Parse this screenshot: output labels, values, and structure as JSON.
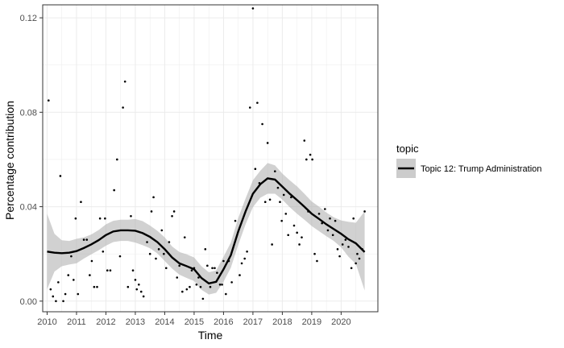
{
  "chart_data": {
    "type": "scatter",
    "title": "",
    "xlabel": "Time",
    "ylabel": "Percentage contribution",
    "xlim": [
      2009.85,
      2021.25
    ],
    "ylim": [
      -0.0045,
      0.1255
    ],
    "x_ticks": [
      2010,
      2011,
      2012,
      2013,
      2014,
      2015,
      2016,
      2017,
      2018,
      2019,
      2020
    ],
    "x_tick_labels": [
      "2010",
      "2011",
      "2012",
      "2013",
      "2014",
      "2015",
      "2016",
      "2017",
      "2018",
      "2019",
      "2020"
    ],
    "y_ticks": [
      0.0,
      0.04,
      0.08,
      0.12
    ],
    "y_tick_labels": [
      "0.00",
      "0.04",
      "0.08",
      "0.12"
    ],
    "grid": true,
    "legend": {
      "title": "topic",
      "position": "right",
      "entries": [
        "Topic 12: Trump Administration"
      ]
    },
    "colors": {
      "points": "#000000",
      "smooth_line": "#000000",
      "confidence_band": "#b3b3b3",
      "panel_border": "#333333",
      "grid": "#ebebeb",
      "legend_key_bg": "#cccccc"
    },
    "series": [
      {
        "name": "Topic 12: Trump Administration",
        "kind": "points",
        "points": [
          [
            2010.05,
            0.085
          ],
          [
            2010.12,
            0.005
          ],
          [
            2010.2,
            0.002
          ],
          [
            2010.3,
            0.0
          ],
          [
            2010.38,
            0.008
          ],
          [
            2010.45,
            0.053
          ],
          [
            2010.55,
            0.0
          ],
          [
            2010.62,
            0.003
          ],
          [
            2010.72,
            0.011
          ],
          [
            2010.82,
            0.019
          ],
          [
            2010.9,
            0.009
          ],
          [
            2010.97,
            0.035
          ],
          [
            2011.05,
            0.003
          ],
          [
            2011.15,
            0.042
          ],
          [
            2011.25,
            0.026
          ],
          [
            2011.35,
            0.026
          ],
          [
            2011.45,
            0.011
          ],
          [
            2011.52,
            0.017
          ],
          [
            2011.6,
            0.006
          ],
          [
            2011.7,
            0.006
          ],
          [
            2011.8,
            0.035
          ],
          [
            2011.9,
            0.021
          ],
          [
            2011.97,
            0.035
          ],
          [
            2012.05,
            0.013
          ],
          [
            2012.15,
            0.013
          ],
          [
            2012.28,
            0.047
          ],
          [
            2012.38,
            0.06
          ],
          [
            2012.48,
            0.019
          ],
          [
            2012.58,
            0.082
          ],
          [
            2012.65,
            0.093
          ],
          [
            2012.75,
            0.006
          ],
          [
            2012.85,
            0.036
          ],
          [
            2012.92,
            0.013
          ],
          [
            2013.0,
            0.009
          ],
          [
            2013.05,
            0.005
          ],
          [
            2013.12,
            0.007
          ],
          [
            2013.2,
            0.004
          ],
          [
            2013.28,
            0.002
          ],
          [
            2013.4,
            0.025
          ],
          [
            2013.5,
            0.02
          ],
          [
            2013.55,
            0.038
          ],
          [
            2013.62,
            0.044
          ],
          [
            2013.7,
            0.018
          ],
          [
            2013.8,
            0.022
          ],
          [
            2013.9,
            0.03
          ],
          [
            2013.97,
            0.02
          ],
          [
            2014.05,
            0.014
          ],
          [
            2014.15,
            0.025
          ],
          [
            2014.25,
            0.036
          ],
          [
            2014.32,
            0.038
          ],
          [
            2014.42,
            0.01
          ],
          [
            2014.5,
            0.015
          ],
          [
            2014.6,
            0.004
          ],
          [
            2014.68,
            0.027
          ],
          [
            2014.75,
            0.005
          ],
          [
            2014.85,
            0.006
          ],
          [
            2014.92,
            0.013
          ],
          [
            2015.0,
            0.014
          ],
          [
            2015.08,
            0.007
          ],
          [
            2015.15,
            0.01
          ],
          [
            2015.22,
            0.006
          ],
          [
            2015.3,
            0.001
          ],
          [
            2015.38,
            0.022
          ],
          [
            2015.45,
            0.015
          ],
          [
            2015.55,
            0.006
          ],
          [
            2015.62,
            0.014
          ],
          [
            2015.7,
            0.014
          ],
          [
            2015.78,
            0.012
          ],
          [
            2015.88,
            0.007
          ],
          [
            2015.95,
            0.007
          ],
          [
            2016.0,
            0.017
          ],
          [
            2016.08,
            0.003
          ],
          [
            2016.18,
            0.017
          ],
          [
            2016.28,
            0.008
          ],
          [
            2016.4,
            0.034
          ],
          [
            2016.55,
            0.011
          ],
          [
            2016.62,
            0.016
          ],
          [
            2016.72,
            0.018
          ],
          [
            2016.8,
            0.021
          ],
          [
            2016.9,
            0.082
          ],
          [
            2017.0,
            0.124
          ],
          [
            2017.08,
            0.056
          ],
          [
            2017.15,
            0.084
          ],
          [
            2017.22,
            0.05
          ],
          [
            2017.32,
            0.075
          ],
          [
            2017.42,
            0.042
          ],
          [
            2017.5,
            0.067
          ],
          [
            2017.58,
            0.043
          ],
          [
            2017.65,
            0.024
          ],
          [
            2017.75,
            0.055
          ],
          [
            2017.85,
            0.048
          ],
          [
            2017.92,
            0.042
          ],
          [
            2017.98,
            0.034
          ],
          [
            2018.05,
            0.045
          ],
          [
            2018.12,
            0.037
          ],
          [
            2018.2,
            0.028
          ],
          [
            2018.3,
            0.044
          ],
          [
            2018.4,
            0.032
          ],
          [
            2018.5,
            0.029
          ],
          [
            2018.58,
            0.024
          ],
          [
            2018.66,
            0.027
          ],
          [
            2018.75,
            0.068
          ],
          [
            2018.82,
            0.06
          ],
          [
            2018.88,
            0.038
          ],
          [
            2018.95,
            0.062
          ],
          [
            2019.02,
            0.06
          ],
          [
            2019.1,
            0.02
          ],
          [
            2019.18,
            0.017
          ],
          [
            2019.25,
            0.037
          ],
          [
            2019.35,
            0.033
          ],
          [
            2019.45,
            0.039
          ],
          [
            2019.55,
            0.03
          ],
          [
            2019.62,
            0.035
          ],
          [
            2019.72,
            0.028
          ],
          [
            2019.8,
            0.034
          ],
          [
            2019.88,
            0.022
          ],
          [
            2019.95,
            0.019
          ],
          [
            2020.05,
            0.024
          ],
          [
            2020.15,
            0.026
          ],
          [
            2020.25,
            0.023
          ],
          [
            2020.35,
            0.014
          ],
          [
            2020.42,
            0.035
          ],
          [
            2020.5,
            0.016
          ],
          [
            2020.55,
            0.02
          ],
          [
            2020.62,
            0.018
          ],
          [
            2020.72,
            0.022
          ],
          [
            2020.8,
            0.038
          ]
        ]
      },
      {
        "name": "smooth",
        "kind": "smooth",
        "x": [
          2010.0,
          2010.25,
          2010.5,
          2010.75,
          2011.0,
          2011.25,
          2011.5,
          2011.75,
          2012.0,
          2012.25,
          2012.5,
          2012.75,
          2013.0,
          2013.25,
          2013.5,
          2013.75,
          2014.0,
          2014.25,
          2014.5,
          2014.75,
          2015.0,
          2015.25,
          2015.5,
          2015.75,
          2016.0,
          2016.25,
          2016.5,
          2016.75,
          2017.0,
          2017.25,
          2017.5,
          2017.75,
          2018.0,
          2018.25,
          2018.5,
          2018.75,
          2019.0,
          2019.25,
          2019.5,
          2019.75,
          2020.0,
          2020.25,
          2020.5,
          2020.8
        ],
        "y": [
          0.021,
          0.0205,
          0.0203,
          0.0205,
          0.0212,
          0.0225,
          0.024,
          0.0258,
          0.028,
          0.0295,
          0.03,
          0.03,
          0.0298,
          0.0288,
          0.0272,
          0.025,
          0.022,
          0.0185,
          0.016,
          0.0148,
          0.0135,
          0.0098,
          0.0075,
          0.0082,
          0.0135,
          0.0195,
          0.0295,
          0.038,
          0.0455,
          0.0495,
          0.052,
          0.0515,
          0.0485,
          0.0455,
          0.0428,
          0.04,
          0.037,
          0.0348,
          0.0325,
          0.0305,
          0.0285,
          0.0262,
          0.0245,
          0.0208
        ],
        "ci_lower": [
          0.005,
          0.0125,
          0.0148,
          0.0155,
          0.016,
          0.018,
          0.0198,
          0.0215,
          0.0235,
          0.025,
          0.0255,
          0.0255,
          0.0248,
          0.0237,
          0.0224,
          0.0202,
          0.017,
          0.0138,
          0.0112,
          0.0098,
          0.0085,
          0.0048,
          0.0028,
          0.0035,
          0.0082,
          0.0142,
          0.0238,
          0.0325,
          0.0398,
          0.0438,
          0.0455,
          0.0455,
          0.043,
          0.0398,
          0.037,
          0.0345,
          0.0318,
          0.0296,
          0.0275,
          0.0255,
          0.0228,
          0.0188,
          0.0158,
          0.0045
        ],
        "ci_upper": [
          0.037,
          0.0285,
          0.0258,
          0.0255,
          0.0264,
          0.027,
          0.0282,
          0.0301,
          0.0325,
          0.034,
          0.0345,
          0.0345,
          0.0348,
          0.0339,
          0.032,
          0.0298,
          0.027,
          0.0232,
          0.0208,
          0.0198,
          0.0185,
          0.0148,
          0.0122,
          0.013,
          0.0188,
          0.0248,
          0.0352,
          0.0435,
          0.0512,
          0.0552,
          0.0585,
          0.0575,
          0.054,
          0.0512,
          0.0486,
          0.0455,
          0.0422,
          0.04,
          0.0375,
          0.0355,
          0.0342,
          0.0336,
          0.0332,
          0.038
        ]
      }
    ]
  }
}
